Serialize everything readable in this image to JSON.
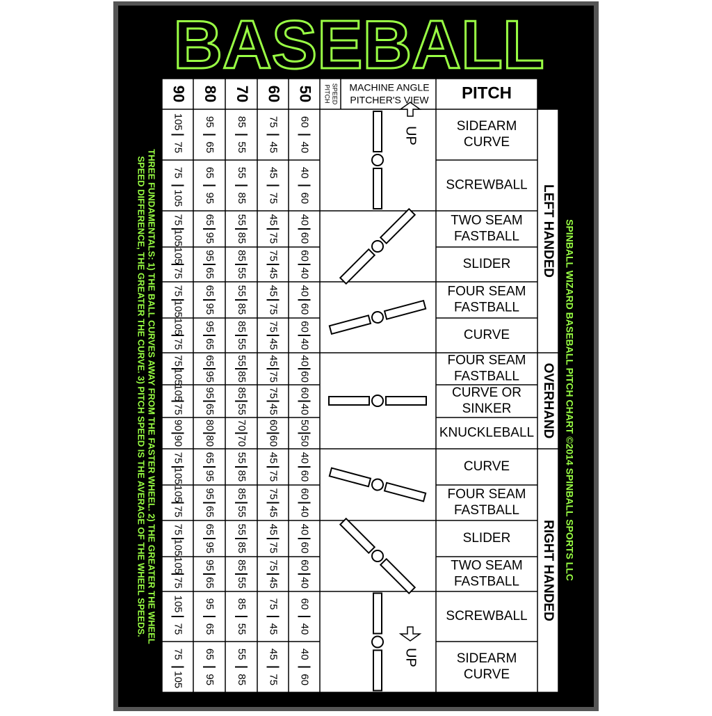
{
  "title": "BASEBALL",
  "header": {
    "speeds": [
      "90",
      "80",
      "70",
      "60",
      "50"
    ],
    "speed_label": [
      "PITCH",
      "SPEED"
    ],
    "angle_label": [
      "MACHINE ANGLE",
      "PITCHER'S VIEW"
    ],
    "pitch_label": "PITCH"
  },
  "up": "UP",
  "credit": "SPINBALL WIZARD BASEBALL PITCH CHART ©2014 SPINBALL SPORTS LLC",
  "fundamentals": [
    "THREE FUNDAMENTALS: 1) THE BALL CURVES AWAY FROM THE FASTER WHEEL. 2) THE GREATER THE WHEEL",
    "SPEED DIFFERENCE, THE GREATER THE CURVE. 3) PITCH SPEED IS THE AVERAGE OF THE WHEEL SPEEDS."
  ],
  "groups": [
    {
      "label": "LEFT HANDED",
      "rows": [
        {
          "pitch": [
            "SIDEARM",
            "CURVE"
          ],
          "cells": [
            [
              "105",
              "75"
            ],
            [
              "95",
              "65"
            ],
            [
              "85",
              "55"
            ],
            [
              "75",
              "45"
            ],
            [
              "60",
              "40"
            ]
          ]
        },
        {
          "pitch": [
            "SCREWBALL"
          ],
          "cells": [
            [
              "75",
              "105"
            ],
            [
              "65",
              "95"
            ],
            [
              "55",
              "85"
            ],
            [
              "45",
              "75"
            ],
            [
              "40",
              "60"
            ]
          ]
        },
        {
          "pitch": [
            "TWO SEAM",
            "FASTBALL"
          ],
          "cells": [
            [
              "75",
              "105"
            ],
            [
              "65",
              "95"
            ],
            [
              "55",
              "85"
            ],
            [
              "45",
              "75"
            ],
            [
              "40",
              "60"
            ]
          ]
        },
        {
          "pitch": [
            "SLIDER"
          ],
          "cells": [
            [
              "105",
              "75"
            ],
            [
              "95",
              "65"
            ],
            [
              "85",
              "55"
            ],
            [
              "75",
              "45"
            ],
            [
              "60",
              "40"
            ]
          ]
        },
        {
          "pitch": [
            "FOUR SEAM",
            "FASTBALL"
          ],
          "cells": [
            [
              "75",
              "105"
            ],
            [
              "65",
              "95"
            ],
            [
              "55",
              "85"
            ],
            [
              "45",
              "75"
            ],
            [
              "40",
              "60"
            ]
          ]
        },
        {
          "pitch": [
            "CURVE"
          ],
          "cells": [
            [
              "105",
              "75"
            ],
            [
              "95",
              "65"
            ],
            [
              "85",
              "55"
            ],
            [
              "75",
              "45"
            ],
            [
              "60",
              "40"
            ]
          ]
        }
      ]
    },
    {
      "label": "OVERHAND",
      "rows": [
        {
          "pitch": [
            "FOUR SEAM",
            "FASTBALL"
          ],
          "cells": [
            [
              "75",
              "105"
            ],
            [
              "65",
              "95"
            ],
            [
              "55",
              "85"
            ],
            [
              "45",
              "75"
            ],
            [
              "40",
              "60"
            ]
          ]
        },
        {
          "pitch": [
            "CURVE OR",
            "SINKER"
          ],
          "cells": [
            [
              "105",
              "75"
            ],
            [
              "95",
              "65"
            ],
            [
              "85",
              "55"
            ],
            [
              "75",
              "45"
            ],
            [
              "60",
              "40"
            ]
          ]
        },
        {
          "pitch": [
            "KNUCKLEBALL"
          ],
          "cells": [
            [
              "90",
              "90"
            ],
            [
              "80",
              "80"
            ],
            [
              "70",
              "70"
            ],
            [
              "60",
              "60"
            ],
            [
              "50",
              "50"
            ]
          ]
        }
      ]
    },
    {
      "label": "RIGHT HANDED",
      "rows": [
        {
          "pitch": [
            "CURVE"
          ],
          "cells": [
            [
              "75",
              "105"
            ],
            [
              "65",
              "95"
            ],
            [
              "55",
              "85"
            ],
            [
              "45",
              "75"
            ],
            [
              "40",
              "60"
            ]
          ]
        },
        {
          "pitch": [
            "FOUR SEAM",
            "FASTBALL"
          ],
          "cells": [
            [
              "105",
              "75"
            ],
            [
              "95",
              "65"
            ],
            [
              "85",
              "55"
            ],
            [
              "75",
              "45"
            ],
            [
              "60",
              "40"
            ]
          ]
        },
        {
          "pitch": [
            "SLIDER"
          ],
          "cells": [
            [
              "75",
              "105"
            ],
            [
              "65",
              "95"
            ],
            [
              "55",
              "85"
            ],
            [
              "45",
              "75"
            ],
            [
              "40",
              "60"
            ]
          ]
        },
        {
          "pitch": [
            "TWO SEAM",
            "FASTBALL"
          ],
          "cells": [
            [
              "105",
              "75"
            ],
            [
              "95",
              "65"
            ],
            [
              "85",
              "55"
            ],
            [
              "75",
              "45"
            ],
            [
              "60",
              "40"
            ]
          ]
        },
        {
          "pitch": [
            "SCREWBALL"
          ],
          "cells": [
            [
              "105",
              "75"
            ],
            [
              "95",
              "65"
            ],
            [
              "85",
              "55"
            ],
            [
              "75",
              "45"
            ],
            [
              "60",
              "40"
            ]
          ]
        },
        {
          "pitch": [
            "SIDEARM",
            "CURVE"
          ],
          "cells": [
            [
              "75",
              "105"
            ],
            [
              "65",
              "95"
            ],
            [
              "55",
              "85"
            ],
            [
              "45",
              "75"
            ],
            [
              "40",
              "60"
            ]
          ]
        }
      ]
    }
  ]
}
